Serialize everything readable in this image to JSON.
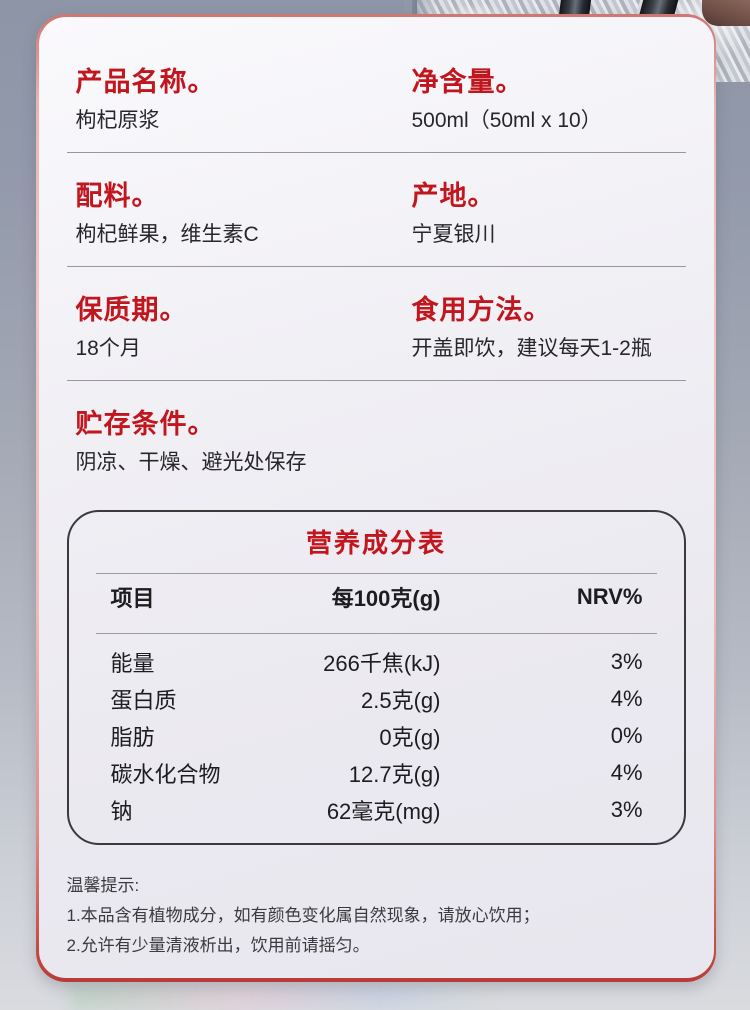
{
  "colors": {
    "accent_red": "#c1161d",
    "card_border_pink": "#eebbb7",
    "card_border_red": "#c64742",
    "table_border": "#3a3a3c",
    "background_slate": "#8d95a6"
  },
  "info_sections": [
    {
      "items": [
        {
          "label": "产品名称。",
          "value": "枸杞原浆"
        },
        {
          "label": "净含量。",
          "value": "500ml（50ml x 10）"
        }
      ]
    },
    {
      "items": [
        {
          "label": "配料。",
          "value": "枸杞鲜果，维生素C"
        },
        {
          "label": "产地。",
          "value": "宁夏银川"
        }
      ]
    },
    {
      "items": [
        {
          "label": "保质期。",
          "value": "18个月"
        },
        {
          "label": "食用方法。",
          "value": "开盖即饮，建议每天1-2瓶"
        }
      ]
    },
    {
      "items": [
        {
          "label": "贮存条件。",
          "value": "阴凉、干燥、避光处保存"
        }
      ]
    }
  ],
  "nutrition": {
    "title": "营养成分表",
    "headers": [
      "项目",
      "每100克(g)",
      "NRV%"
    ],
    "rows": [
      [
        "能量",
        "266千焦(kJ)",
        "3%"
      ],
      [
        "蛋白质",
        "2.5克(g)",
        "4%"
      ],
      [
        "脂肪",
        "0克(g)",
        "0%"
      ],
      [
        "碳水化合物",
        "12.7克(g)",
        "4%"
      ],
      [
        "钠",
        "62毫克(mg)",
        "3%"
      ]
    ]
  },
  "tips": {
    "title": "温馨提示:",
    "lines": [
      "1.本品含有植物成分，如有颜色变化属自然现象，请放心饮用；",
      "2.允许有少量清液析出，饮用前请摇匀。"
    ]
  }
}
